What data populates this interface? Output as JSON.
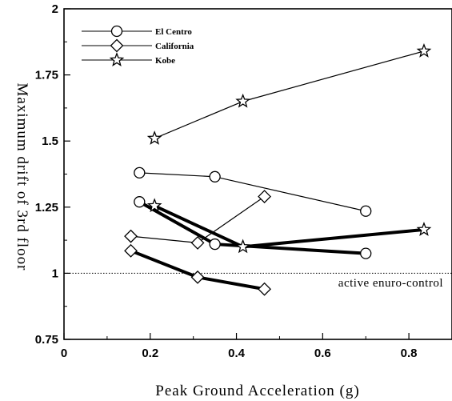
{
  "chart_data": {
    "type": "line",
    "xlabel": "Peak Ground Acceleration (g)",
    "ylabel": "Maximum drift of 3rd floor",
    "xlim": [
      0,
      0.9
    ],
    "ylim": [
      0.75,
      2
    ],
    "x_ticks": [
      "0",
      "0.2",
      "0.4",
      "0.6",
      "0.8"
    ],
    "x_tick_values": [
      0,
      0.2,
      0.4,
      0.6,
      0.8
    ],
    "y_ticks": [
      "0.75",
      "1",
      "1.25",
      "1.5",
      "1.75",
      "2"
    ],
    "y_tick_values": [
      0.75,
      1,
      1.25,
      1.5,
      1.75,
      2
    ],
    "legend": {
      "position": "top-left",
      "entries": [
        "El Centro",
        "California",
        "Kobe"
      ]
    },
    "reference_line": {
      "y": 1.0,
      "style": "dotted",
      "label": "active enuro-control"
    },
    "grid": false,
    "series": [
      {
        "name": "El Centro",
        "marker": "circle",
        "line": "thin",
        "x": [
          0.175,
          0.35,
          0.7
        ],
        "y": [
          1.38,
          1.365,
          1.235
        ]
      },
      {
        "name": "California",
        "marker": "diamond",
        "line": "thin",
        "x": [
          0.155,
          0.31,
          0.465
        ],
        "y": [
          1.14,
          1.115,
          1.29
        ]
      },
      {
        "name": "Kobe",
        "marker": "star",
        "line": "thin",
        "x": [
          0.21,
          0.415,
          0.835
        ],
        "y": [
          1.51,
          1.65,
          1.84
        ]
      },
      {
        "name": "El Centro",
        "marker": "circle",
        "line": "thick",
        "x": [
          0.175,
          0.35,
          0.7
        ],
        "y": [
          1.27,
          1.11,
          1.075
        ]
      },
      {
        "name": "California",
        "marker": "diamond",
        "line": "thick",
        "x": [
          0.155,
          0.31,
          0.465
        ],
        "y": [
          1.085,
          0.985,
          0.94
        ]
      },
      {
        "name": "Kobe",
        "marker": "star",
        "line": "thick",
        "x": [
          0.21,
          0.415,
          0.835
        ],
        "y": [
          1.255,
          1.1,
          1.165
        ]
      }
    ]
  }
}
